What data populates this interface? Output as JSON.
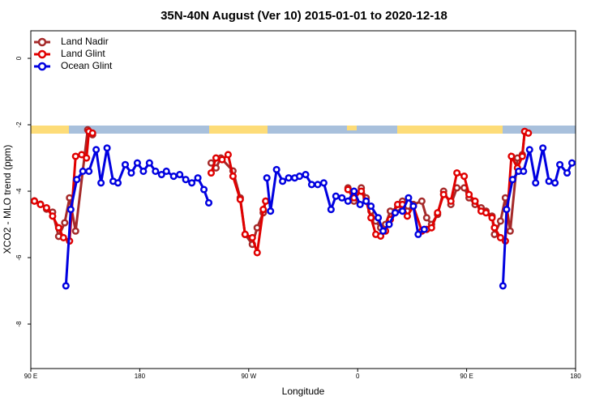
{
  "chart_data": {
    "type": "line",
    "title": "35N-40N August (Ver 10)   2015-01-01 to 2020-12-18",
    "xlabel": "Longitude",
    "ylabel": "XCO2 - MLO trend (ppm)",
    "xlim": [
      90,
      540
    ],
    "ylim": [
      -9.34,
      0.83
    ],
    "xticks": [
      {
        "value": 90,
        "label": "90 E"
      },
      180,
      {
        "value": 270,
        "label": "90 W"
      },
      {
        "value": 360,
        "label": "0"
      },
      {
        "value": 450,
        "label": "90 E"
      },
      {
        "value": 540,
        "label": "180"
      }
    ],
    "yticks": [
      0,
      -2,
      -4,
      -6,
      -8
    ],
    "legend": "top-left",
    "series": [
      {
        "name": "Land Nadir",
        "color": "#a52a2a",
        "x": [
          93,
          98,
          103,
          108,
          113,
          118,
          122,
          127,
          137,
          141,
          null,
          239,
          243,
          247,
          257,
          263,
          267,
          273,
          277,
          282,
          284,
          null,
          352,
          357,
          363,
          367,
          371,
          375,
          379,
          383,
          387,
          393,
          397,
          401,
          406,
          413,
          417,
          421,
          426,
          431,
          437,
          442,
          448,
          452,
          457,
          462,
          466,
          471,
          473,
          478,
          482,
          486,
          492,
          496,
          498
        ],
        "values": [
          -4.29,
          -4.39,
          -4.54,
          -4.63,
          -5.36,
          -4.95,
          -4.2,
          -5.2,
          -2.15,
          -2.3,
          null,
          -3.15,
          -3.3,
          -3.0,
          -3.39,
          -4.2,
          -5.3,
          -5.6,
          -5.1,
          -4.65,
          -4.3,
          null,
          -3.9,
          -4.3,
          -3.9,
          -4.2,
          -4.6,
          -4.9,
          -5.1,
          -5.0,
          -4.6,
          -4.5,
          -4.3,
          -4.6,
          -4.4,
          -4.3,
          -4.8,
          -5.0,
          -4.7,
          -4.0,
          -4.4,
          -3.9,
          -3.9,
          -4.2,
          -4.4,
          -4.5,
          -4.6,
          -4.75,
          -5.3,
          -4.9,
          -4.2,
          -5.2,
          -3.0,
          -2.9,
          -2.2
        ]
      },
      {
        "name": "Land Glint",
        "color": "#e00000",
        "x": [
          93,
          98,
          103,
          108,
          113,
          117,
          122,
          127,
          132,
          136,
          138,
          141,
          null,
          239,
          243,
          248,
          253,
          257,
          263,
          267,
          273,
          277,
          282,
          284,
          null,
          352,
          357,
          363,
          367,
          371,
          375,
          379,
          383,
          387,
          393,
          397,
          401,
          406,
          413,
          417,
          421,
          426,
          431,
          437,
          442,
          448,
          452,
          457,
          462,
          466,
          471,
          473,
          478,
          482,
          487,
          492,
          496,
          498,
          501
        ],
        "values": [
          -4.3,
          -4.4,
          -4.5,
          -4.75,
          -5.1,
          -5.4,
          -5.5,
          -2.95,
          -2.9,
          -3.0,
          -2.2,
          -2.25,
          null,
          -3.45,
          -3.0,
          -3.05,
          -2.9,
          -3.55,
          -4.25,
          -5.3,
          -5.4,
          -5.85,
          -4.55,
          -4.3,
          null,
          -3.95,
          -4.2,
          -4.0,
          -4.3,
          -4.8,
          -5.3,
          -5.35,
          -5.2,
          -4.85,
          -4.4,
          -4.4,
          -4.75,
          -4.45,
          -5.2,
          -5.15,
          -5.1,
          -4.65,
          -4.1,
          -4.3,
          -3.45,
          -3.55,
          -4.1,
          -4.3,
          -4.6,
          -4.65,
          -4.8,
          -5.1,
          -5.4,
          -5.5,
          -2.95,
          -3.3,
          -2.95,
          -2.2,
          -2.25
        ]
      },
      {
        "name": "Ocean Glint",
        "color": "#0000e0",
        "x": [
          119,
          123,
          128,
          133,
          138,
          144,
          148,
          153,
          158,
          162,
          168,
          173,
          178,
          183,
          188,
          193,
          198,
          202,
          208,
          213,
          218,
          223,
          228,
          233,
          237,
          null,
          285,
          288,
          293,
          298,
          303,
          308,
          312,
          317,
          322,
          327,
          332,
          338,
          342,
          347,
          352,
          357,
          362,
          367,
          371,
          377,
          381,
          386,
          391,
          397,
          402,
          406,
          410,
          415,
          null,
          480,
          483,
          488,
          493,
          497,
          502,
          507,
          513,
          518,
          523,
          527,
          533,
          537
        ],
        "values": [
          -6.85,
          -4.55,
          -3.65,
          -3.4,
          -3.4,
          -2.75,
          -3.75,
          -2.7,
          -3.7,
          -3.75,
          -3.2,
          -3.45,
          -3.15,
          -3.4,
          -3.15,
          -3.4,
          -3.5,
          -3.4,
          -3.55,
          -3.5,
          -3.65,
          -3.75,
          -3.6,
          -3.95,
          -4.35,
          null,
          -3.6,
          -4.6,
          -3.35,
          -3.7,
          -3.6,
          -3.6,
          -3.55,
          -3.5,
          -3.8,
          -3.8,
          -3.75,
          -4.55,
          -4.15,
          -4.2,
          -4.3,
          -4.0,
          -4.4,
          -4.3,
          -4.45,
          -4.8,
          -5.2,
          -5.0,
          -4.65,
          -4.6,
          -4.2,
          -4.45,
          -5.3,
          -5.15,
          null,
          -6.85,
          -4.55,
          -3.65,
          -3.4,
          -3.4,
          -2.75,
          -3.75,
          -2.7,
          -3.7,
          -3.75,
          -3.2,
          -3.45,
          -3.15
        ]
      }
    ]
  }
}
